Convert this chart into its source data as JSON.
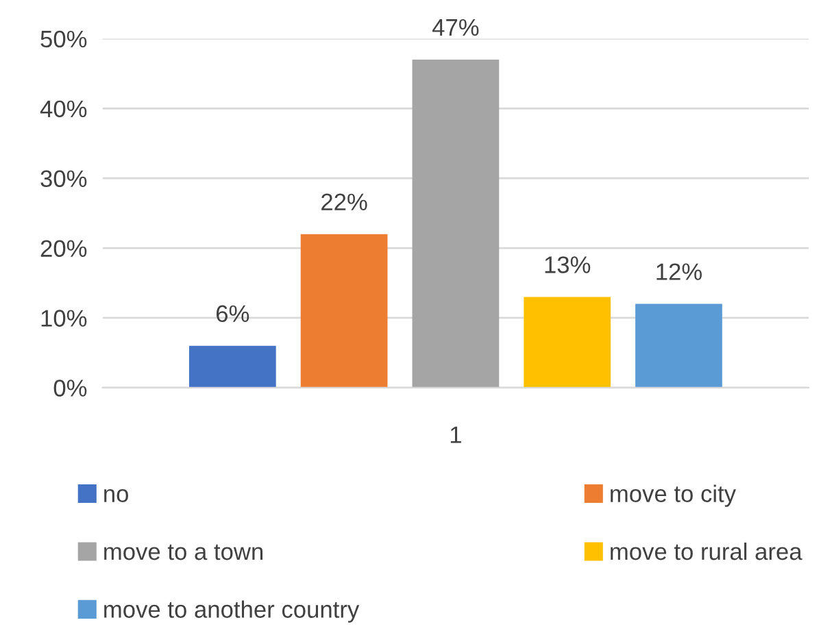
{
  "chart_data": {
    "type": "bar",
    "categories": [
      "1"
    ],
    "series": [
      {
        "name": "no",
        "color": "#4472c4",
        "values": [
          6
        ],
        "value_labels": [
          "6%"
        ]
      },
      {
        "name": "move to city",
        "color": "#ed7d31",
        "values": [
          22
        ],
        "value_labels": [
          "22%"
        ]
      },
      {
        "name": "move to a town",
        "color": "#a5a5a5",
        "values": [
          47
        ],
        "value_labels": [
          "47%"
        ]
      },
      {
        "name": "move to rural area",
        "color": "#ffc000",
        "values": [
          13
        ],
        "value_labels": [
          "13%"
        ]
      },
      {
        "name": "move to another country",
        "color": "#5b9bd5",
        "values": [
          12
        ],
        "value_labels": [
          "12%"
        ]
      }
    ],
    "ylim": [
      0,
      50
    ],
    "yticks": [
      {
        "value": 0,
        "label": "0%"
      },
      {
        "value": 10,
        "label": "10%"
      },
      {
        "value": 20,
        "label": "20%"
      },
      {
        "value": 30,
        "label": "30%"
      },
      {
        "value": 40,
        "label": "40%"
      },
      {
        "value": 50,
        "label": "50%"
      }
    ],
    "grid": "y",
    "legend": "bottom"
  }
}
